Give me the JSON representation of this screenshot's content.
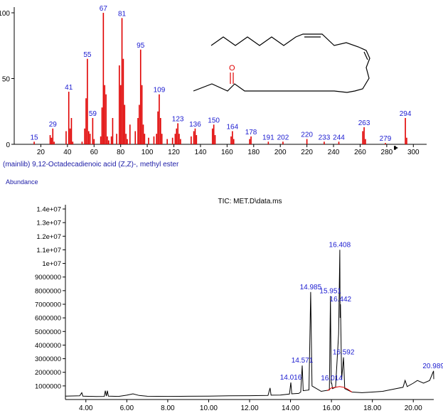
{
  "chart_data": [
    {
      "type": "bar",
      "title": "(mainlib) 9,12-Octadecadienoic acid (Z,Z)-, methyl ester",
      "xlim": [
        0,
        310
      ],
      "ylim": [
        0,
        100
      ],
      "xticks": [
        20,
        40,
        60,
        80,
        100,
        120,
        140,
        160,
        180,
        200,
        220,
        240,
        260,
        280,
        300
      ],
      "yticks": [
        0,
        50,
        100
      ],
      "color": "#e00000",
      "peaks": [
        {
          "mz": 15,
          "value": 2
        },
        {
          "mz": 27,
          "value": 7
        },
        {
          "mz": 28,
          "value": 5
        },
        {
          "mz": 29,
          "value": 12
        },
        {
          "mz": 30,
          "value": 2
        },
        {
          "mz": 39,
          "value": 10
        },
        {
          "mz": 41,
          "value": 40
        },
        {
          "mz": 42,
          "value": 12
        },
        {
          "mz": 43,
          "value": 20
        },
        {
          "mz": 44,
          "value": 2
        },
        {
          "mz": 51,
          "value": 2
        },
        {
          "mz": 53,
          "value": 12
        },
        {
          "mz": 54,
          "value": 35
        },
        {
          "mz": 55,
          "value": 65
        },
        {
          "mz": 56,
          "value": 10
        },
        {
          "mz": 57,
          "value": 8
        },
        {
          "mz": 59,
          "value": 20
        },
        {
          "mz": 60,
          "value": 4
        },
        {
          "mz": 65,
          "value": 6
        },
        {
          "mz": 66,
          "value": 28
        },
        {
          "mz": 67,
          "value": 100
        },
        {
          "mz": 68,
          "value": 45
        },
        {
          "mz": 69,
          "value": 38
        },
        {
          "mz": 70,
          "value": 6
        },
        {
          "mz": 71,
          "value": 3
        },
        {
          "mz": 73,
          "value": 6
        },
        {
          "mz": 74,
          "value": 20
        },
        {
          "mz": 77,
          "value": 8
        },
        {
          "mz": 79,
          "value": 60
        },
        {
          "mz": 80,
          "value": 45
        },
        {
          "mz": 81,
          "value": 96
        },
        {
          "mz": 82,
          "value": 65
        },
        {
          "mz": 83,
          "value": 30
        },
        {
          "mz": 84,
          "value": 8
        },
        {
          "mz": 85,
          "value": 4
        },
        {
          "mz": 87,
          "value": 15
        },
        {
          "mz": 91,
          "value": 10
        },
        {
          "mz": 93,
          "value": 20
        },
        {
          "mz": 94,
          "value": 30
        },
        {
          "mz": 95,
          "value": 72
        },
        {
          "mz": 96,
          "value": 45
        },
        {
          "mz": 97,
          "value": 15
        },
        {
          "mz": 98,
          "value": 8
        },
        {
          "mz": 101,
          "value": 5
        },
        {
          "mz": 105,
          "value": 6
        },
        {
          "mz": 107,
          "value": 8
        },
        {
          "mz": 108,
          "value": 25
        },
        {
          "mz": 109,
          "value": 38
        },
        {
          "mz": 110,
          "value": 20
        },
        {
          "mz": 111,
          "value": 8
        },
        {
          "mz": 115,
          "value": 4
        },
        {
          "mz": 119,
          "value": 5
        },
        {
          "mz": 121,
          "value": 8
        },
        {
          "mz": 122,
          "value": 12
        },
        {
          "mz": 123,
          "value": 16
        },
        {
          "mz": 124,
          "value": 8
        },
        {
          "mz": 125,
          "value": 4
        },
        {
          "mz": 133,
          "value": 6
        },
        {
          "mz": 135,
          "value": 10
        },
        {
          "mz": 136,
          "value": 12
        },
        {
          "mz": 137,
          "value": 7
        },
        {
          "mz": 149,
          "value": 12
        },
        {
          "mz": 150,
          "value": 15
        },
        {
          "mz": 151,
          "value": 7
        },
        {
          "mz": 163,
          "value": 6
        },
        {
          "mz": 164,
          "value": 10
        },
        {
          "mz": 165,
          "value": 4
        },
        {
          "mz": 177,
          "value": 4
        },
        {
          "mz": 178,
          "value": 6
        },
        {
          "mz": 191,
          "value": 2
        },
        {
          "mz": 202,
          "value": 2
        },
        {
          "mz": 220,
          "value": 4
        },
        {
          "mz": 233,
          "value": 2
        },
        {
          "mz": 244,
          "value": 2
        },
        {
          "mz": 262,
          "value": 10
        },
        {
          "mz": 263,
          "value": 13
        },
        {
          "mz": 264,
          "value": 4
        },
        {
          "mz": 279,
          "value": 1
        },
        {
          "mz": 294,
          "value": 20
        },
        {
          "mz": 295,
          "value": 5
        }
      ],
      "peak_labels": [
        {
          "mz": 15,
          "text": "15"
        },
        {
          "mz": 29,
          "text": "29"
        },
        {
          "mz": 41,
          "text": "41"
        },
        {
          "mz": 55,
          "text": "55"
        },
        {
          "mz": 59,
          "text": "59"
        },
        {
          "mz": 67,
          "text": "67"
        },
        {
          "mz": 81,
          "text": "81"
        },
        {
          "mz": 95,
          "text": "95"
        },
        {
          "mz": 109,
          "text": "109"
        },
        {
          "mz": 123,
          "text": "123"
        },
        {
          "mz": 136,
          "text": "136"
        },
        {
          "mz": 150,
          "text": "150"
        },
        {
          "mz": 164,
          "text": "164"
        },
        {
          "mz": 178,
          "text": "178"
        },
        {
          "mz": 191,
          "text": "191"
        },
        {
          "mz": 202,
          "text": "202"
        },
        {
          "mz": 220,
          "text": "220"
        },
        {
          "mz": 233,
          "text": "233"
        },
        {
          "mz": 244,
          "text": "244"
        },
        {
          "mz": 263,
          "text": "263"
        },
        {
          "mz": 279,
          "text": "279"
        },
        {
          "mz": 294,
          "text": "294"
        }
      ],
      "structure_labels": {
        "oxygen": "O"
      }
    },
    {
      "type": "line",
      "title": "TIC: MET.D\\data.ms",
      "ylabel": "Abundance",
      "xlim": [
        3.0,
        21.0
      ],
      "ylim": [
        0,
        14000000
      ],
      "xticks": [
        {
          "value": 4,
          "label": "4.00"
        },
        {
          "value": 6,
          "label": "6.00"
        },
        {
          "value": 8,
          "label": "8.00"
        },
        {
          "value": 10,
          "label": "10.00"
        },
        {
          "value": 12,
          "label": "12.00"
        },
        {
          "value": 14,
          "label": "14.00"
        },
        {
          "value": 16,
          "label": "16.00"
        },
        {
          "value": 18,
          "label": "18.00"
        },
        {
          "value": 20,
          "label": "20.00"
        }
      ],
      "yticks": [
        {
          "value": 1000000,
          "label": "1000000"
        },
        {
          "value": 2000000,
          "label": "2000000"
        },
        {
          "value": 3000000,
          "label": "3000000"
        },
        {
          "value": 4000000,
          "label": "4000000"
        },
        {
          "value": 5000000,
          "label": "5000000"
        },
        {
          "value": 6000000,
          "label": "6000000"
        },
        {
          "value": 7000000,
          "label": "7000000"
        },
        {
          "value": 8000000,
          "label": "8000000"
        },
        {
          "value": 9000000,
          "label": "9000000"
        },
        {
          "value": 10000000,
          "label": "1e+07"
        },
        {
          "value": 11000000,
          "label": "1.1e+07"
        },
        {
          "value": 12000000,
          "label": "1.2e+07"
        },
        {
          "value": 13000000,
          "label": "1.3e+07"
        },
        {
          "value": 14000000,
          "label": "1.4e+07"
        }
      ],
      "series": [
        {
          "color": "#000000",
          "points": [
            [
              3.0,
              250000
            ],
            [
              3.7,
              270000
            ],
            [
              3.8,
              500000
            ],
            [
              3.85,
              250000
            ],
            [
              4.5,
              220000
            ],
            [
              4.9,
              230000
            ],
            [
              4.95,
              650000
            ],
            [
              5.0,
              250000
            ],
            [
              5.05,
              650000
            ],
            [
              5.1,
              250000
            ],
            [
              5.6,
              230000
            ],
            [
              6.0,
              320000
            ],
            [
              6.3,
              420000
            ],
            [
              6.6,
              300000
            ],
            [
              7.0,
              240000
            ],
            [
              8.0,
              230000
            ],
            [
              9.0,
              240000
            ],
            [
              10.0,
              250000
            ],
            [
              11.0,
              270000
            ],
            [
              12.0,
              280000
            ],
            [
              12.9,
              300000
            ],
            [
              13.0,
              850000
            ],
            [
              13.05,
              320000
            ],
            [
              13.5,
              330000
            ],
            [
              13.95,
              400000
            ],
            [
              14.016,
              1250000
            ],
            [
              14.06,
              420000
            ],
            [
              14.4,
              450000
            ],
            [
              14.5,
              550000
            ],
            [
              14.571,
              2500000
            ],
            [
              14.62,
              650000
            ],
            [
              14.9,
              700000
            ],
            [
              14.985,
              7900000
            ],
            [
              15.05,
              1000000
            ],
            [
              15.5,
              600000
            ],
            [
              15.9,
              700000
            ],
            [
              15.951,
              7600000
            ],
            [
              15.99,
              1200000
            ],
            [
              16.014,
              1200000
            ],
            [
              16.05,
              800000
            ],
            [
              16.2,
              900000
            ],
            [
              16.35,
              4800000
            ],
            [
              16.408,
              11000000
            ],
            [
              16.425,
              6000000
            ],
            [
              16.442,
              7000000
            ],
            [
              16.5,
              1500000
            ],
            [
              16.592,
              3100000
            ],
            [
              16.65,
              800000
            ],
            [
              17.0,
              550000
            ],
            [
              17.5,
              500000
            ],
            [
              18.0,
              550000
            ],
            [
              18.5,
              600000
            ],
            [
              19.0,
              750000
            ],
            [
              19.5,
              900000
            ],
            [
              19.6,
              1400000
            ],
            [
              19.7,
              950000
            ],
            [
              20.0,
              1200000
            ],
            [
              20.2,
              1400000
            ],
            [
              20.5,
              1200000
            ],
            [
              20.8,
              1400000
            ],
            [
              20.989,
              2100000
            ],
            [
              21.0,
              1500000
            ]
          ]
        },
        {
          "color": "#e00000",
          "points": [
            [
              15.8,
              650000
            ],
            [
              16.0,
              850000
            ],
            [
              16.2,
              900000
            ],
            [
              16.4,
              950000
            ],
            [
              16.6,
              900000
            ],
            [
              16.8,
              750000
            ],
            [
              17.0,
              550000
            ]
          ]
        }
      ],
      "peak_labels": [
        {
          "x": 14.016,
          "y": 1250000,
          "text": "14.016"
        },
        {
          "x": 14.571,
          "y": 2500000,
          "text": "14.571"
        },
        {
          "x": 14.985,
          "y": 7900000,
          "text": "14.985"
        },
        {
          "x": 15.951,
          "y": 7600000,
          "text": "15.951"
        },
        {
          "x": 16.014,
          "y": 1200000,
          "text": "16.014"
        },
        {
          "x": 16.408,
          "y": 11000000,
          "text": "16.408"
        },
        {
          "x": 16.442,
          "y": 7000000,
          "text": "16.442"
        },
        {
          "x": 16.592,
          "y": 3100000,
          "text": "16.592"
        },
        {
          "x": 20.989,
          "y": 2100000,
          "text": "20.989"
        }
      ]
    }
  ]
}
